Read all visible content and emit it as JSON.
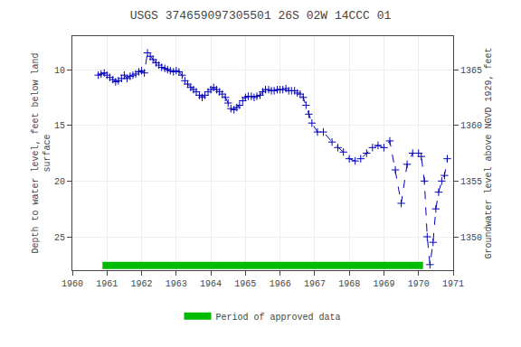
{
  "chart_data": {
    "type": "line",
    "title": "USGS 374659097305501 26S 02W 14CCC 01",
    "ylabel": "Depth to water level, feet below land\nsurface",
    "y2label": "Groundwater level above NGVD 1929, feet",
    "xlim": [
      1960,
      1971
    ],
    "xticks": [
      1960,
      1961,
      1962,
      1963,
      1964,
      1965,
      1966,
      1967,
      1968,
      1969,
      1970,
      1971
    ],
    "ylim": [
      28.0,
      7.0
    ],
    "yticks": [
      10,
      15,
      20,
      25
    ],
    "y2lim": [
      1347.0,
      1368.0
    ],
    "y2ticks": [
      1365,
      1360,
      1355,
      1350
    ],
    "grid": true,
    "legend": "bottom",
    "x": [
      1960.75,
      1960.83,
      1960.92,
      1961.0,
      1961.08,
      1961.17,
      1961.25,
      1961.33,
      1961.42,
      1961.5,
      1961.58,
      1961.67,
      1961.75,
      1961.83,
      1961.92,
      1962.0,
      1962.08,
      1962.17,
      1962.25,
      1962.33,
      1962.42,
      1962.5,
      1962.58,
      1962.67,
      1962.75,
      1962.83,
      1962.92,
      1963.0,
      1963.08,
      1963.17,
      1963.25,
      1963.33,
      1963.42,
      1963.5,
      1963.58,
      1963.67,
      1963.75,
      1963.83,
      1963.92,
      1964.0,
      1964.08,
      1964.17,
      1964.25,
      1964.33,
      1964.42,
      1964.5,
      1964.58,
      1964.67,
      1964.75,
      1964.83,
      1964.92,
      1965.0,
      1965.08,
      1965.17,
      1965.25,
      1965.33,
      1965.42,
      1965.5,
      1965.58,
      1965.67,
      1965.75,
      1965.83,
      1965.92,
      1966.0,
      1966.08,
      1966.17,
      1966.25,
      1966.33,
      1966.42,
      1966.5,
      1966.58,
      1966.67,
      1966.75,
      1966.83,
      1966.92,
      1967.08,
      1967.25,
      1967.5,
      1967.67,
      1967.83,
      1968.0,
      1968.17,
      1968.33,
      1968.5,
      1968.67,
      1968.83,
      1969.0,
      1969.17,
      1969.33,
      1969.5,
      1969.67,
      1969.83,
      1970.0,
      1970.08,
      1970.17,
      1970.25,
      1970.33,
      1970.42,
      1970.5,
      1970.58,
      1970.67,
      1970.75,
      1970.83
    ],
    "series": [
      {
        "color": "#0000bb",
        "line_style": "dashed",
        "marker": "plus",
        "values": [
          10.5,
          10.4,
          10.3,
          10.5,
          10.7,
          10.9,
          11.1,
          11.0,
          10.8,
          10.5,
          10.8,
          10.6,
          10.5,
          10.4,
          10.2,
          10.1,
          10.3,
          8.5,
          8.8,
          9.1,
          9.4,
          9.6,
          9.8,
          9.9,
          10.0,
          10.1,
          10.2,
          10.1,
          10.2,
          10.5,
          11.0,
          11.3,
          11.6,
          11.8,
          12.0,
          12.3,
          12.5,
          12.3,
          12.0,
          11.8,
          11.6,
          11.8,
          12.0,
          12.2,
          12.5,
          13.0,
          13.5,
          13.6,
          13.4,
          13.2,
          12.8,
          12.5,
          12.4,
          12.4,
          12.5,
          12.4,
          12.3,
          12.0,
          11.8,
          11.8,
          11.9,
          11.9,
          11.8,
          11.8,
          11.8,
          11.7,
          11.9,
          11.9,
          11.9,
          12.1,
          12.2,
          12.5,
          13.2,
          14.0,
          14.8,
          15.6,
          15.6,
          16.5,
          17.0,
          17.4,
          18.0,
          18.2,
          18.0,
          17.5,
          17.0,
          16.8,
          17.0,
          16.4,
          19.0,
          22.0,
          18.5,
          17.5,
          17.5,
          17.8,
          20.0,
          25.0,
          27.5,
          25.5,
          22.5,
          21.0,
          20.0,
          19.5,
          18.0
        ]
      },
      {
        "name": "Period of approved data",
        "type": "span",
        "color": "#00bb00",
        "x": [
          1960.87,
          1970.13
        ]
      }
    ]
  }
}
